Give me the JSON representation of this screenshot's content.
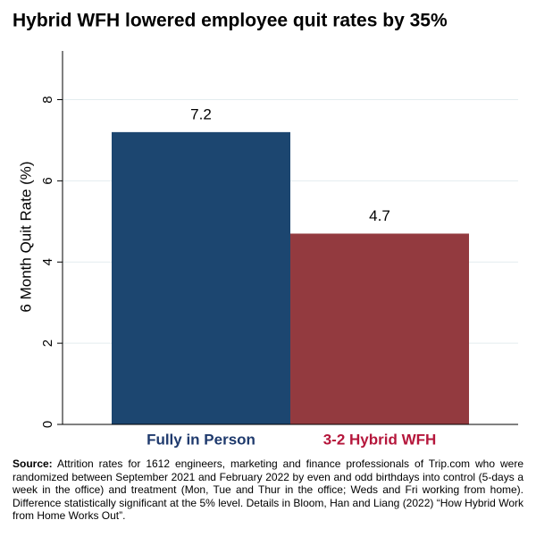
{
  "chart_data": {
    "type": "bar",
    "title": "Hybrid WFH lowered employee quit rates by 35%",
    "y_label": "6 Month Quit Rate (%)",
    "categories": [
      "Fully in Person",
      "3-2 Hybrid WFH"
    ],
    "values": [
      7.2,
      4.7
    ],
    "bar_colors": [
      "#1c4670",
      "#933a3f"
    ],
    "category_colors": [
      "#1f3a6d",
      "#b5163b"
    ],
    "ylim": [
      0,
      9.2
    ],
    "yticks": [
      0,
      2,
      4,
      6,
      8
    ],
    "grid": true,
    "source_label": "Source:",
    "source": "Attrition rates for 1612 engineers, marketing and finance professionals of Trip.com who were randomized between September 2021 and February 2022 by even and odd birthdays into control (5-days a week in the office) and treatment (Mon, Tue and Thur in the office; Weds and Fri working from home). Difference statistically significant at the 5% level. Details in Bloom, Han and Liang (2022) “How Hybrid Work from Home Works Out”."
  }
}
